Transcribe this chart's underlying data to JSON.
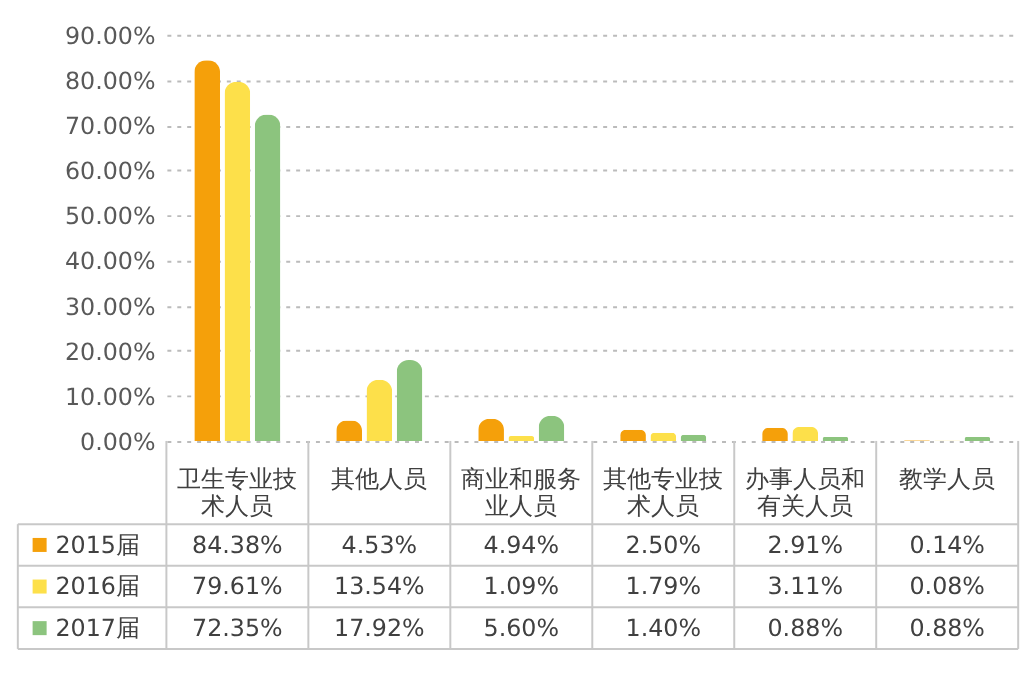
{
  "chart_data": {
    "type": "bar",
    "categories": [
      "卫生专业技术人员",
      "其他人员",
      "商业和服务业人员",
      "其他专业技术人员",
      "办事人员和有关人员",
      "教学人员"
    ],
    "series": [
      {
        "name": "2015届",
        "color": "#f5a00a",
        "values": [
          84.38,
          4.53,
          4.94,
          2.5,
          2.91,
          0.14
        ],
        "value_labels": [
          "84.38%",
          "4.53%",
          "4.94%",
          "2.50%",
          "2.91%",
          "0.14%"
        ]
      },
      {
        "name": "2016届",
        "color": "#fde04a",
        "values": [
          79.61,
          13.54,
          1.09,
          1.79,
          3.11,
          0.08
        ],
        "value_labels": [
          "79.61%",
          "13.54%",
          "1.09%",
          "1.79%",
          "3.11%",
          "0.08%"
        ]
      },
      {
        "name": "2017届",
        "color": "#8cc47e",
        "values": [
          72.35,
          17.92,
          5.6,
          1.4,
          0.88,
          0.88
        ],
        "value_labels": [
          "72.35%",
          "17.92%",
          "5.60%",
          "1.40%",
          "0.88%",
          "0.88%"
        ]
      }
    ],
    "ylim": [
      0,
      90
    ],
    "yticks": [
      {
        "value": 0,
        "label": "0.00%"
      },
      {
        "value": 10,
        "label": "10.00%"
      },
      {
        "value": 20,
        "label": "20.00%"
      },
      {
        "value": 30,
        "label": "30.00%"
      },
      {
        "value": 40,
        "label": "40.00%"
      },
      {
        "value": 50,
        "label": "50.00%"
      },
      {
        "value": 60,
        "label": "60.00%"
      },
      {
        "value": 70,
        "label": "70.00%"
      },
      {
        "value": 80,
        "label": "80.00%"
      },
      {
        "value": 90,
        "label": "90.00%"
      }
    ],
    "grid": "y",
    "legend": "bottom left"
  }
}
